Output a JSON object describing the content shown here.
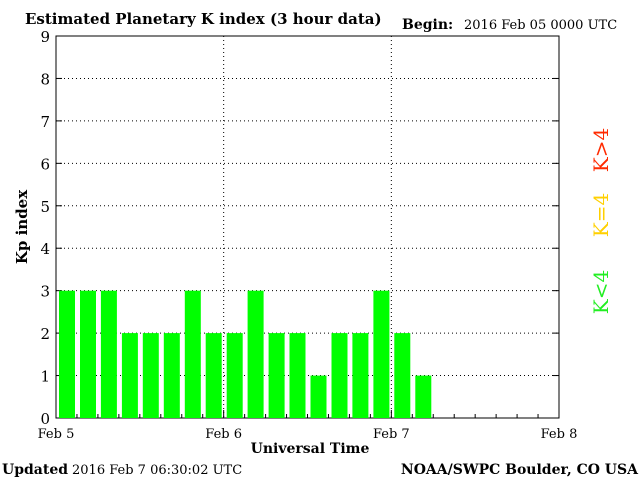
{
  "header": {
    "title": "Estimated Planetary K index (3 hour data)",
    "begin_label": "Begin:",
    "begin_value": "2016 Feb 05 0000 UTC"
  },
  "footer": {
    "updated_label": "Updated",
    "updated_value": "2016 Feb  7 06:30:02 UTC",
    "source": "NOAA/SWPC Boulder, CO USA"
  },
  "legend": {
    "high": "K>4",
    "mid": "K=4",
    "low": "K<4",
    "colors": {
      "high": "#ff2a00",
      "mid": "#ffd000",
      "low": "#22ee22"
    }
  },
  "chart_data": {
    "type": "bar",
    "title": "Estimated Planetary K index (3 hour data)",
    "xlabel": "Universal Time",
    "ylabel": "Kp index",
    "ylim": [
      0,
      9
    ],
    "yticks": [
      "0",
      "1",
      "2",
      "3",
      "4",
      "5",
      "6",
      "7",
      "8",
      "9"
    ],
    "xticks": [
      "Feb 5",
      "Feb 6",
      "Feb 7",
      "Feb 8"
    ],
    "interval_hours": 3,
    "values": [
      3,
      3,
      3,
      2,
      2,
      2,
      3,
      2,
      2,
      3,
      2,
      2,
      1,
      2,
      2,
      3,
      2,
      1
    ],
    "bar_color": "#00ff00",
    "grid": true
  }
}
